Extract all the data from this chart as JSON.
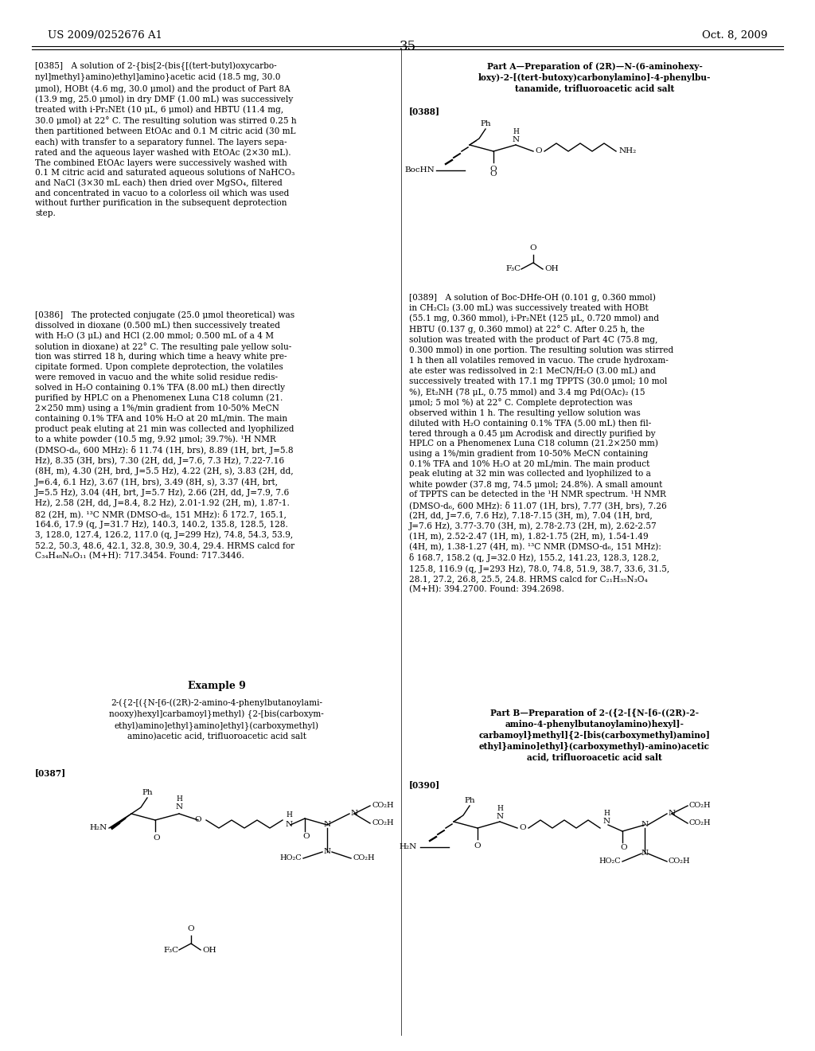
{
  "page_number": "35",
  "patent_number": "US 2009/0252676 A1",
  "patent_date": "Oct. 8, 2009",
  "background_color": "#ffffff",
  "figsize": [
    10.24,
    13.2
  ],
  "dpi": 100,
  "p385": "[0385] A solution of 2-{bis[2-(bis{[(tert-butyl)oxycarbo-\nnyl]methyl}amino)ethyl]amino}acetic acid (18.5 mg, 30.0\nμmol), HOBt (4.6 mg, 30.0 μmol) and the product of Part 8A\n(13.9 mg, 25.0 μmol) in dry DMF (1.00 mL) was successively\ntreated with i-Pr₂NEt (10 μL, 6 μmol) and HBTU (11.4 mg,\n30.0 μmol) at 22° C. The resulting solution was stirred 0.25 h\nthen partitioned between EtOAc and 0.1 M citric acid (30 mL\neach) with transfer to a separatory funnel. The layers sepa-\nrated and the aqueous layer washed with EtOAc (2×30 mL).\nThe combined EtOAc layers were successively washed with\n0.1 M citric acid and saturated aqueous solutions of NaHCO₃\nand NaCl (3×30 mL each) then dried over MgSO₄, filtered\nand concentrated in vacuo to a colorless oil which was used\nwithout further purification in the subsequent deprotection\nstep.",
  "p386": "[0386] The protected conjugate (25.0 μmol theoretical) was\ndissolved in dioxane (0.500 mL) then successively treated\nwith H₂O (3 μL) and HCl (2.00 mmol; 0.500 mL of a 4 M\nsolution in dioxane) at 22° C. The resulting pale yellow solu-\ntion was stirred 18 h, during which time a heavy white pre-\ncipitate formed. Upon complete deprotection, the volatiles\nwere removed in vacuo and the white solid residue redis-\nsolved in H₂O containing 0.1% TFA (8.00 mL) then directly\npurified by HPLC on a Phenomenex Luna C18 column (21.\n2×250 mm) using a 1%/min gradient from 10-50% MeCN\ncontaining 0.1% TFA and 10% H₂O at 20 mL/min. The main\nproduct peak eluting at 21 min was collected and lyophilized\nto a white powder (10.5 mg, 9.92 μmol; 39.7%). ¹H NMR\n(DMSO-d₆, 600 MHz): δ 11.74 (1H, brs), 8.89 (1H, brt, J=5.8\nHz), 8.35 (3H, brs), 7.30 (2H, dd, J=7.6, 7.3 Hz), 7.22-7.16\n(8H, m), 4.30 (2H, brd, J=5.5 Hz), 4.22 (2H, s), 3.83 (2H, dd,\nJ=6.4, 6.1 Hz), 3.67 (1H, brs), 3.49 (8H, s), 3.37 (4H, brt,\nJ=5.5 Hz), 3.04 (4H, brt, J=5.7 Hz), 2.66 (2H, dd, J=7.9, 7.6\nHz), 2.58 (2H, dd, J=8.4, 8.2 Hz), 2.01-1.92 (2H, m), 1.87-1.\n82 (2H, m). ¹³C NMR (DMSO-d₆, 151 MHz): δ 172.7, 165.1,\n164.6, 17.9 (q, J=31.7 Hz), 140.3, 140.2, 135.8, 128.5, 128.\n3, 128.0, 127.4, 126.2, 117.0 (q, J=299 Hz), 74.8, 54.3, 53.9,\n52.2, 50.3, 48.6, 42.1, 32.8, 30.9, 30.4, 29.4. HRMS calcd for\nC₃₄H₄₈N₆O₁₁ (M+H): 717.3454. Found: 717.3446.",
  "ex9_heading": "Example 9",
  "ex9_title": "2-({2-[({N-[6-((2R)-2-amino-4-phenylbutanoylami-\nnooxy)hexyl]carbamoyl}methyl) {2-[bis(carboxym-\nethyl)amino]ethyl}amino]ethyl}(carboxymethyl)\namino)acetic acid, trifluoroacetic acid salt",
  "p387_tag": "[0387]",
  "partA_title": "Part A—Preparation of (2R)—N-(6-aminohexy-\nloxy)-2-[(tert-butoxy)carbonylamino]-4-phenylbu-\ntanamide, trifluoroacetic acid salt",
  "p388_tag": "[0388]",
  "p389": "[0389] A solution of Boc-DHfe-OH (0.101 g, 0.360 mmol)\nin CH₂Cl₂ (3.00 mL) was successively treated with HOBt\n(55.1 mg, 0.360 mmol), i-Pr₂NEt (125 μL, 0.720 mmol) and\nHBTU (0.137 g, 0.360 mmol) at 22° C. After 0.25 h, the\nsolution was treated with the product of Part 4C (75.8 mg,\n0.300 mmol) in one portion. The resulting solution was stirred\n1 h then all volatiles removed in vacuo. The crude hydroxam-\nate ester was redissolved in 2:1 MeCN/H₂O (3.00 mL) and\nsuccessively treated with 17.1 mg TPPTS (30.0 μmol; 10 mol\n%), Et₂NH (78 μL, 0.75 mmol) and 3.4 mg Pd(OAc)₂ (15\nμmol; 5 mol %) at 22° C. Complete deprotection was\nobserved within 1 h. The resulting yellow solution was\ndiluted with H₂O containing 0.1% TFA (5.00 mL) then fil-\ntered through a 0.45 μm Acrodisk and directly purified by\nHPLC on a Phenomenex Luna C18 column (21.2×250 mm)\nusing a 1%/min gradient from 10-50% MeCN containing\n0.1% TFA and 10% H₂O at 20 mL/min. The main product\npeak eluting at 32 min was collected and lyophilized to a\nwhite powder (37.8 mg, 74.5 μmol; 24.8%). A small amount\nof TPPTS can be detected in the ¹H NMR spectrum. ¹H NMR\n(DMSO-d₆, 600 MHz): δ 11.07 (1H, brs), 7.77 (3H, brs), 7.26\n(2H, dd, J=7.6, 7.6 Hz), 7.18-7.15 (3H, m), 7.04 (1H, brd,\nJ=7.6 Hz), 3.77-3.70 (3H, m), 2.78-2.73 (2H, m), 2.62-2.57\n(1H, m), 2.52-2.47 (1H, m), 1.82-1.75 (2H, m), 1.54-1.49\n(4H, m), 1.38-1.27 (4H, m). ¹³C NMR (DMSO-d₆, 151 MHz):\nδ 168.7, 158.2 (q, J=32.0 Hz), 155.2, 141.23, 128.3, 128.2,\n125.8, 116.9 (q, J=293 Hz), 78.0, 74.8, 51.9, 38.7, 33.6, 31.5,\n28.1, 27.2, 26.8, 25.5, 24.8. HRMS calcd for C₂₁H₃₅N₃O₄\n(M+H): 394.2700. Found: 394.2698.",
  "partB_title": "Part B—Preparation of 2-({2-[{N-[6-((2R)-2-\namino-4-phenylbutanoylamino)hexyl]-\ncarbamoyl}methyl]{2-[bis(carboxymethyl)amino]\nethyl}amino]ethyl}(carboxymethyl)-amino)acetic\nacid, trifluoroacetic acid salt",
  "p390_tag": "[0390]"
}
